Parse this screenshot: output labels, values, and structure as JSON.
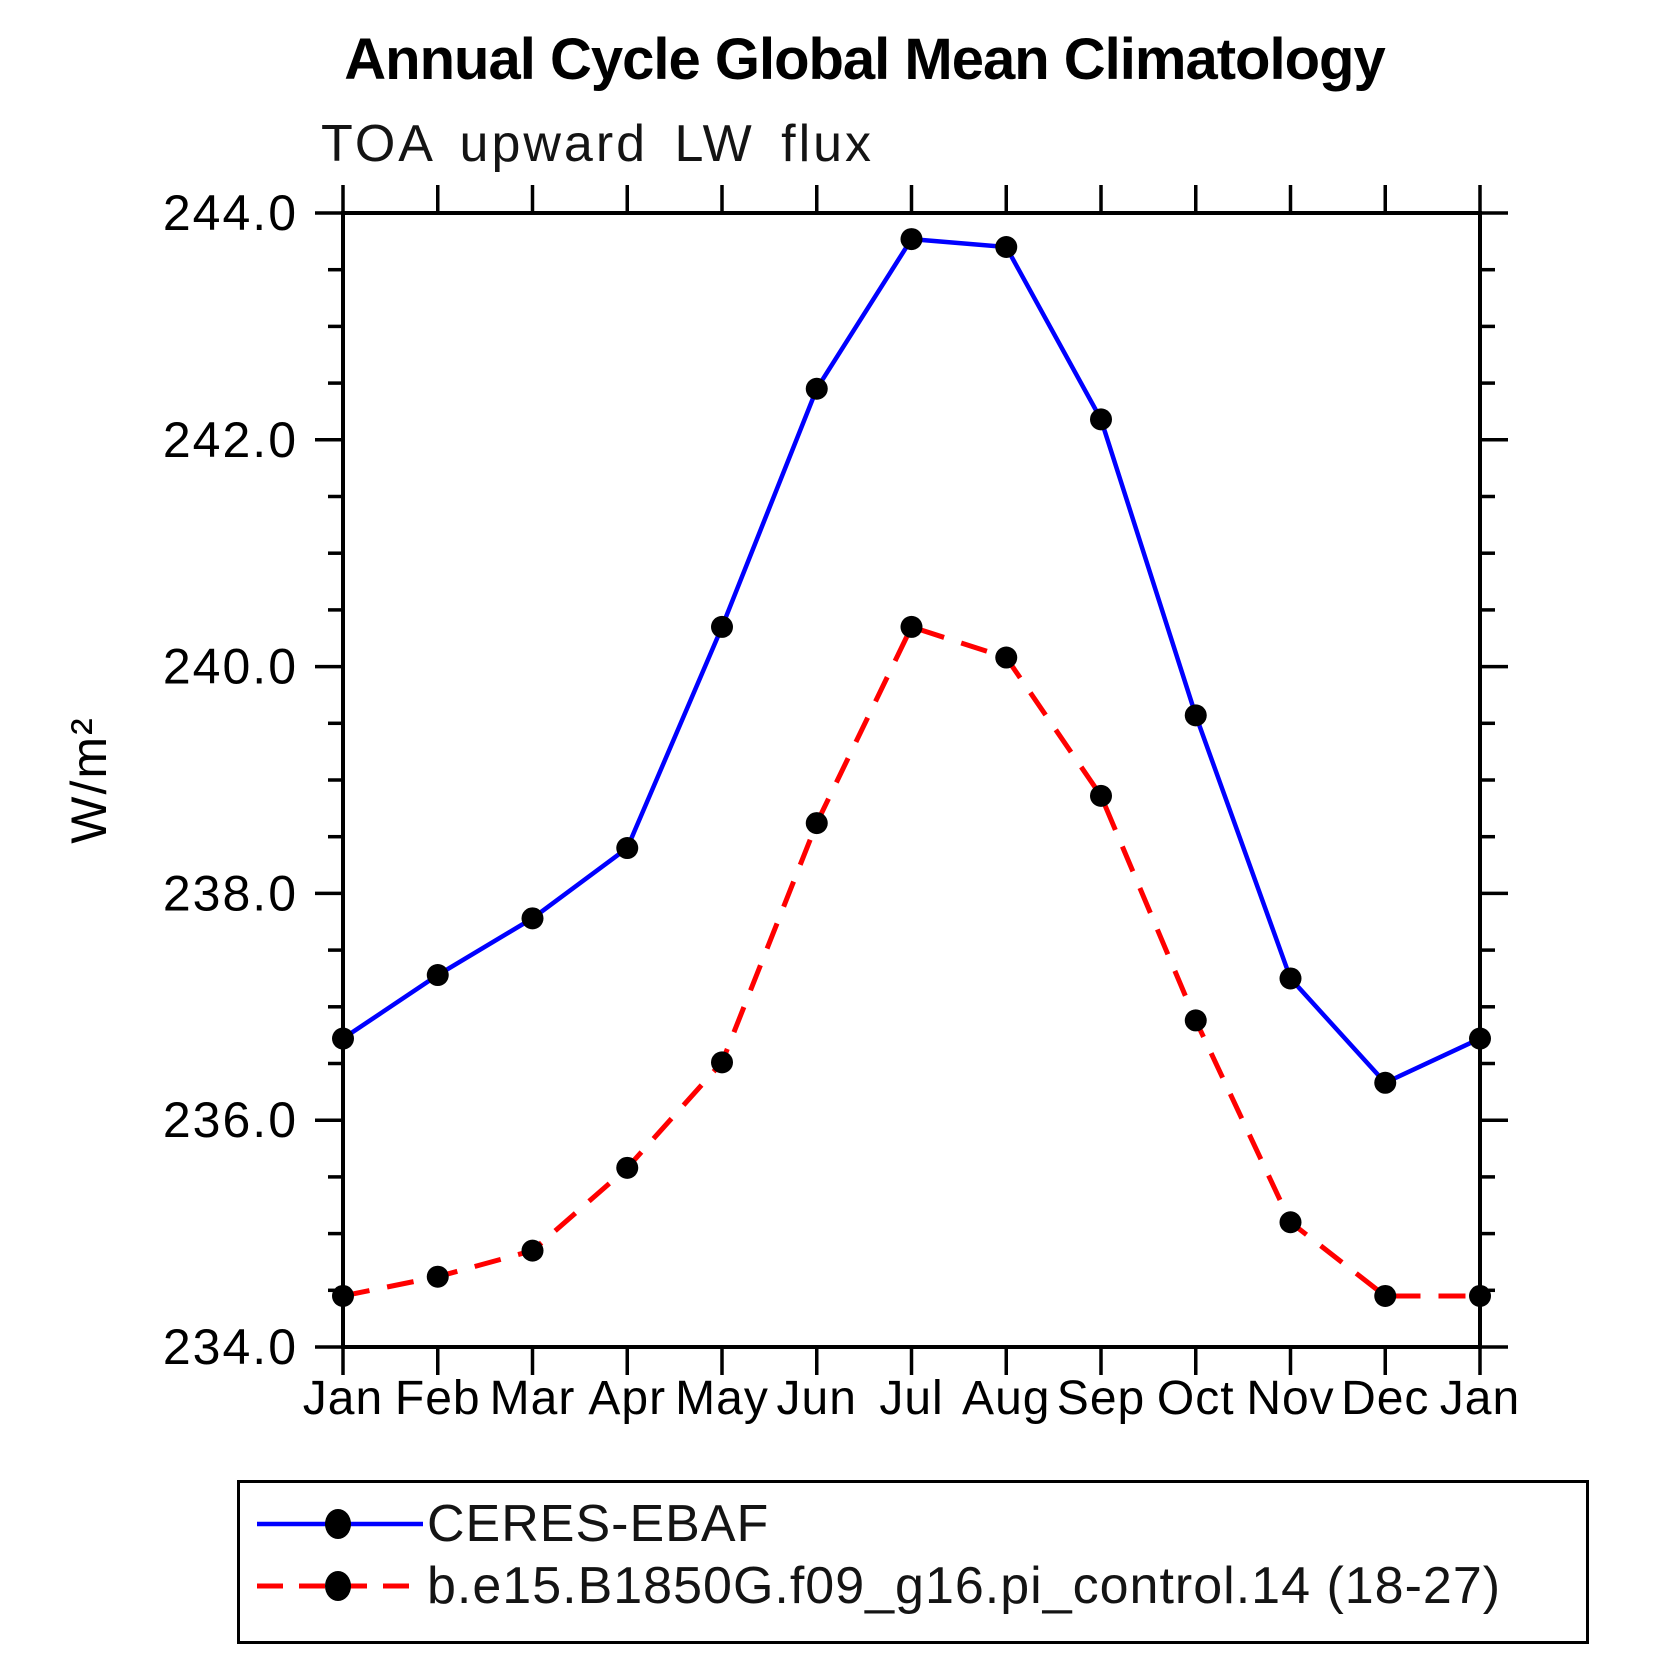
{
  "title": "Annual Cycle Global Mean Climatology",
  "subtitle": "TOA upward LW flux",
  "chart_data": {
    "type": "line",
    "title": "Annual Cycle Global Mean Climatology",
    "subtitle": "TOA upward LW flux",
    "xlabel": "",
    "ylabel": "W/m²",
    "categories": [
      "Jan",
      "Feb",
      "Mar",
      "Apr",
      "May",
      "Jun",
      "Jul",
      "Aug",
      "Sep",
      "Oct",
      "Nov",
      "Dec",
      "Jan"
    ],
    "ylim": [
      234.0,
      244.0
    ],
    "ytick_major": 2.0,
    "ytick_minor": 0.5,
    "ytick_labels": [
      "234.0",
      "236.0",
      "238.0",
      "240.0",
      "242.0",
      "244.0"
    ],
    "grid": false,
    "legend_position": "bottom-left-box",
    "series": [
      {
        "name": "CERES-EBAF",
        "color": "#0000ff",
        "line_style": "solid",
        "marker": "filled-circle",
        "marker_color": "#000000",
        "values": [
          236.72,
          237.28,
          237.78,
          238.4,
          240.35,
          242.45,
          243.77,
          243.7,
          242.18,
          239.57,
          237.25,
          236.33,
          236.72
        ]
      },
      {
        "name": "b.e15.B1850G.f09_g16.pi_control.14 (18-27)",
        "color": "#ff0000",
        "line_style": "dashed",
        "marker": "filled-circle",
        "marker_color": "#000000",
        "values": [
          234.45,
          234.62,
          234.85,
          235.58,
          236.51,
          238.62,
          240.35,
          240.08,
          238.86,
          236.88,
          235.1,
          234.45,
          234.45
        ]
      }
    ]
  },
  "colors": {
    "background": "#ffffff",
    "axis": "#000000",
    "text": "#000000",
    "series_1": "#0000ff",
    "series_2": "#ff0000",
    "marker": "#000000"
  }
}
